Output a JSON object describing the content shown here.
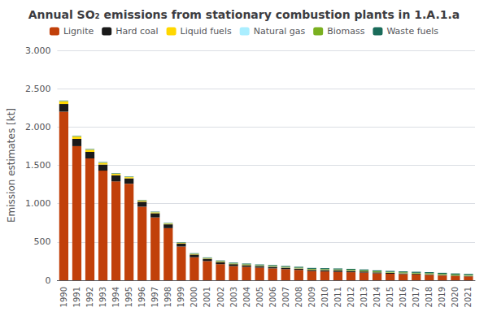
{
  "chart_data": {
    "type": "bar",
    "stacked": true,
    "title": "Annual SO₂ emissions from stationary combustion plants in 1.A.1.a",
    "ylabel": "Emission estimates [kt]",
    "categories": [
      1990,
      1991,
      1992,
      1993,
      1994,
      1995,
      1996,
      1997,
      1998,
      1999,
      2000,
      2001,
      2002,
      2003,
      2004,
      2005,
      2006,
      2007,
      2008,
      2009,
      2010,
      2011,
      2012,
      2013,
      2014,
      2015,
      2016,
      2017,
      2018,
      2019,
      2020,
      2021
    ],
    "series": [
      {
        "name": "Lignite",
        "color": "#c1400a",
        "values": [
          2200,
          1750,
          1590,
          1430,
          1290,
          1260,
          960,
          820,
          680,
          440,
          300,
          250,
          210,
          185,
          175,
          165,
          155,
          145,
          135,
          120,
          115,
          110,
          105,
          100,
          90,
          85,
          80,
          75,
          70,
          62,
          55,
          50
        ]
      },
      {
        "name": "Hard coal",
        "color": "#1a1a1a",
        "values": [
          100,
          95,
          85,
          80,
          80,
          70,
          65,
          55,
          50,
          40,
          35,
          30,
          28,
          25,
          22,
          20,
          20,
          18,
          17,
          16,
          17,
          18,
          17,
          15,
          13,
          11,
          10,
          9,
          8,
          7,
          6,
          5
        ]
      },
      {
        "name": "Liquid fuels",
        "color": "#ffd700",
        "values": [
          35,
          30,
          28,
          22,
          18,
          15,
          12,
          10,
          8,
          7,
          6,
          5,
          5,
          4,
          4,
          3,
          3,
          3,
          3,
          3,
          3,
          3,
          3,
          2,
          2,
          2,
          2,
          2,
          2,
          2,
          2,
          2
        ]
      },
      {
        "name": "Natural gas",
        "color": "#aaeeff",
        "values": [
          2,
          2,
          2,
          2,
          2,
          2,
          2,
          2,
          2,
          2,
          2,
          2,
          2,
          2,
          2,
          2,
          2,
          2,
          2,
          2,
          2,
          2,
          2,
          2,
          2,
          2,
          2,
          2,
          2,
          2,
          2,
          2
        ]
      },
      {
        "name": "Biomass",
        "color": "#7ab020",
        "values": [
          3,
          3,
          3,
          3,
          3,
          3,
          3,
          3,
          3,
          3,
          4,
          4,
          5,
          5,
          6,
          6,
          7,
          7,
          7,
          8,
          8,
          8,
          9,
          9,
          9,
          9,
          9,
          9,
          10,
          10,
          10,
          10
        ]
      },
      {
        "name": "Waste fuels",
        "color": "#1a6b5a",
        "values": [
          5,
          5,
          5,
          5,
          5,
          5,
          5,
          5,
          5,
          5,
          6,
          7,
          8,
          9,
          9,
          10,
          11,
          11,
          12,
          12,
          13,
          13,
          13,
          13,
          13,
          13,
          13,
          14,
          14,
          14,
          14,
          14
        ]
      }
    ],
    "ylim": [
      0,
      3000
    ],
    "yticks": [
      0,
      500,
      {
        "value": 1000,
        "label": "1.000"
      },
      {
        "value": 1500,
        "label": "1.500"
      },
      {
        "value": 2000,
        "label": "2.000"
      },
      {
        "value": 2500,
        "label": "2.500"
      },
      {
        "value": 3000,
        "label": "3.000"
      }
    ],
    "grid": true,
    "legend": "top"
  }
}
